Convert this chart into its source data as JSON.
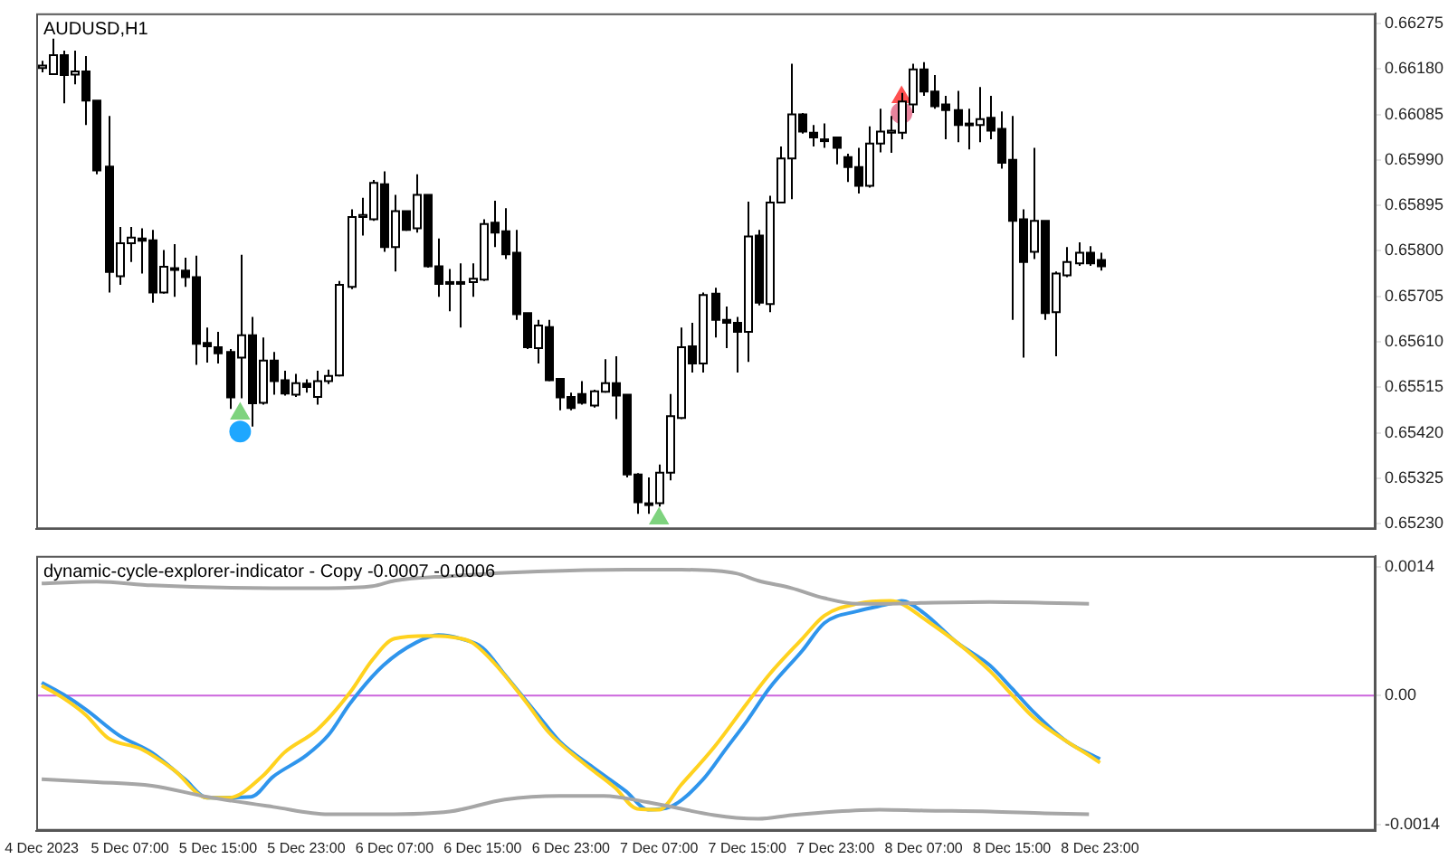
{
  "chart_data": [
    {
      "type": "candlestick",
      "title": "AUDUSD,H1",
      "tick_labels": "y",
      "xlim": [
        "2023-12-04T22:30",
        "2023-12-10T00:00"
      ],
      "ylim": [
        0.65219,
        0.66296
      ],
      "yticks": [
        0.66275,
        {
          "value": 0.6618,
          "label": "0.66180"
        },
        0.66085,
        {
          "value": 0.6599,
          "label": "0.65990"
        },
        0.65895,
        {
          "value": 0.658,
          "label": "0.65800"
        },
        0.65705,
        {
          "value": 0.6561,
          "label": "0.65610"
        },
        0.65515,
        {
          "value": 0.6542,
          "label": "0.65420"
        },
        0.65325,
        {
          "value": 0.6523,
          "label": "0.65230"
        }
      ],
      "x": [
        "2023-12-04T23:00",
        "2023-12-05T00:00",
        "2023-12-05T01:00",
        "2023-12-05T02:00",
        "2023-12-05T03:00",
        "2023-12-05T04:00",
        "2023-12-05T05:00",
        "2023-12-05T06:00",
        "2023-12-05T07:00",
        "2023-12-05T08:00",
        "2023-12-05T09:00",
        "2023-12-05T10:00",
        "2023-12-05T11:00",
        "2023-12-05T12:00",
        "2023-12-05T13:00",
        "2023-12-05T14:00",
        "2023-12-05T15:00",
        "2023-12-05T16:00",
        "2023-12-05T17:00",
        "2023-12-05T18:00",
        "2023-12-05T19:00",
        "2023-12-05T20:00",
        "2023-12-05T21:00",
        "2023-12-05T22:00",
        "2023-12-05T23:00",
        "2023-12-06T00:00",
        "2023-12-06T01:00",
        "2023-12-06T02:00",
        "2023-12-06T03:00",
        "2023-12-06T04:00",
        "2023-12-06T05:00",
        "2023-12-06T06:00",
        "2023-12-06T07:00",
        "2023-12-06T08:00",
        "2023-12-06T09:00",
        "2023-12-06T10:00",
        "2023-12-06T11:00",
        "2023-12-06T12:00",
        "2023-12-06T13:00",
        "2023-12-06T14:00",
        "2023-12-06T15:00",
        "2023-12-06T16:00",
        "2023-12-06T17:00",
        "2023-12-06T18:00",
        "2023-12-06T19:00",
        "2023-12-06T20:00",
        "2023-12-06T21:00",
        "2023-12-06T22:00",
        "2023-12-06T23:00",
        "2023-12-07T00:00",
        "2023-12-07T01:00",
        "2023-12-07T02:00",
        "2023-12-07T03:00",
        "2023-12-07T04:00",
        "2023-12-07T05:00",
        "2023-12-07T06:00",
        "2023-12-07T07:00",
        "2023-12-07T08:00",
        "2023-12-07T09:00",
        "2023-12-07T10:00",
        "2023-12-07T11:00",
        "2023-12-07T12:00",
        "2023-12-07T13:00",
        "2023-12-07T14:00",
        "2023-12-07T15:00",
        "2023-12-07T16:00",
        "2023-12-07T17:00",
        "2023-12-07T18:00",
        "2023-12-07T19:00",
        "2023-12-07T20:00",
        "2023-12-07T21:00",
        "2023-12-07T22:00",
        "2023-12-07T23:00",
        "2023-12-08T00:00",
        "2023-12-08T01:00",
        "2023-12-08T02:00",
        "2023-12-08T03:00",
        "2023-12-08T04:00",
        "2023-12-08T05:00",
        "2023-12-08T06:00",
        "2023-12-08T07:00",
        "2023-12-08T08:00",
        "2023-12-08T09:00",
        "2023-12-08T10:00",
        "2023-12-08T11:00",
        "2023-12-08T12:00",
        "2023-12-08T13:00",
        "2023-12-08T14:00",
        "2023-12-08T15:00",
        "2023-12-08T16:00",
        "2023-12-08T17:00",
        "2023-12-08T18:00",
        "2023-12-08T19:00",
        "2023-12-08T20:00",
        "2023-12-08T21:00",
        "2023-12-08T22:00",
        "2023-12-08T23:00"
      ],
      "ohlc": [
        [
          0.66182,
          0.66197,
          0.66173,
          0.66187
        ],
        [
          0.66169,
          0.66243,
          0.66167,
          0.66209
        ],
        [
          0.66209,
          0.66218,
          0.66108,
          0.66167
        ],
        [
          0.66168,
          0.66218,
          0.66148,
          0.66175
        ],
        [
          0.66175,
          0.66207,
          0.66063,
          0.66114
        ],
        [
          0.66114,
          0.66114,
          0.6596,
          0.65968
        ],
        [
          0.65976,
          0.66082,
          0.65713,
          0.65756
        ],
        [
          0.65747,
          0.6585,
          0.65729,
          0.65816
        ],
        [
          0.65816,
          0.6585,
          0.65777,
          0.65828
        ],
        [
          0.65826,
          0.65847,
          0.65753,
          0.65821
        ],
        [
          0.65822,
          0.65844,
          0.65692,
          0.65713
        ],
        [
          0.65713,
          0.65802,
          0.65711,
          0.65767
        ],
        [
          0.65764,
          0.65814,
          0.65704,
          0.65762
        ],
        [
          0.65759,
          0.65786,
          0.65725,
          0.65745
        ],
        [
          0.65745,
          0.6579,
          0.65562,
          0.65606
        ],
        [
          0.65608,
          0.6564,
          0.65567,
          0.65601
        ],
        [
          0.65599,
          0.65631,
          0.65565,
          0.65586
        ],
        [
          0.65589,
          0.65595,
          0.6547,
          0.65494
        ],
        [
          0.65577,
          0.65792,
          0.65492,
          0.65624
        ],
        [
          0.65624,
          0.65662,
          0.65433,
          0.65482
        ],
        [
          0.65483,
          0.65619,
          0.65479,
          0.65571
        ],
        [
          0.65571,
          0.65589,
          0.655,
          0.65528
        ],
        [
          0.6553,
          0.6555,
          0.65498,
          0.65502
        ],
        [
          0.655,
          0.65543,
          0.65495,
          0.65524
        ],
        [
          0.65523,
          0.65532,
          0.65504,
          0.65516
        ],
        [
          0.65495,
          0.6555,
          0.65479,
          0.65528
        ],
        [
          0.65528,
          0.65552,
          0.65522,
          0.65539
        ],
        [
          0.6554,
          0.65737,
          0.65538,
          0.65729
        ],
        [
          0.65725,
          0.65887,
          0.6572,
          0.65871
        ],
        [
          0.65871,
          0.65911,
          0.65832,
          0.65875
        ],
        [
          0.65866,
          0.65948,
          0.65863,
          0.65942
        ],
        [
          0.65939,
          0.65966,
          0.65798,
          0.65808
        ],
        [
          0.65808,
          0.65917,
          0.65757,
          0.65883
        ],
        [
          0.65883,
          0.65883,
          0.65842,
          0.65844
        ],
        [
          0.65847,
          0.6596,
          0.65838,
          0.65917
        ],
        [
          0.65917,
          0.65917,
          0.65765,
          0.65768
        ],
        [
          0.65768,
          0.65826,
          0.65704,
          0.65731
        ],
        [
          0.65735,
          0.65762,
          0.65674,
          0.65732
        ],
        [
          0.65732,
          0.65774,
          0.6564,
          0.65735
        ],
        [
          0.65735,
          0.65774,
          0.65704,
          0.65742
        ],
        [
          0.6574,
          0.65866,
          0.65737,
          0.65856
        ],
        [
          0.65859,
          0.65905,
          0.65808,
          0.65838
        ],
        [
          0.65841,
          0.65889,
          0.65783,
          0.65793
        ],
        [
          0.65796,
          0.65844,
          0.65656,
          0.65668
        ],
        [
          0.6567,
          0.6567,
          0.65595,
          0.65599
        ],
        [
          0.65597,
          0.65656,
          0.65565,
          0.65644
        ],
        [
          0.65641,
          0.65656,
          0.65528,
          0.6553
        ],
        [
          0.65533,
          0.65533,
          0.65467,
          0.65494
        ],
        [
          0.65495,
          0.65504,
          0.65467,
          0.65472
        ],
        [
          0.65501,
          0.65528,
          0.65479,
          0.65483
        ],
        [
          0.65477,
          0.6551,
          0.65473,
          0.65507
        ],
        [
          0.65506,
          0.65574,
          0.65504,
          0.65524
        ],
        [
          0.65524,
          0.6558,
          0.65449,
          0.65498
        ],
        [
          0.655,
          0.655,
          0.65327,
          0.65333
        ],
        [
          0.65333,
          0.65336,
          0.65251,
          0.65275
        ],
        [
          0.65273,
          0.65327,
          0.65251,
          0.6527
        ],
        [
          0.65273,
          0.65354,
          0.65266,
          0.65337
        ],
        [
          0.65337,
          0.65501,
          0.65321,
          0.65455
        ],
        [
          0.65451,
          0.6564,
          0.65449,
          0.65599
        ],
        [
          0.65601,
          0.6565,
          0.65546,
          0.65565
        ],
        [
          0.65565,
          0.65713,
          0.65546,
          0.65708
        ],
        [
          0.65711,
          0.65723,
          0.65619,
          0.65656
        ],
        [
          0.65656,
          0.65684,
          0.65597,
          0.6565
        ],
        [
          0.6565,
          0.65662,
          0.65546,
          0.65631
        ],
        [
          0.65631,
          0.65903,
          0.65568,
          0.6583
        ],
        [
          0.65832,
          0.65844,
          0.65686,
          0.65692
        ],
        [
          0.65689,
          0.65915,
          0.65672,
          0.65901
        ],
        [
          0.65901,
          0.66018,
          0.65899,
          0.65993
        ],
        [
          0.65993,
          0.66191,
          0.65908,
          0.66085
        ],
        [
          0.66085,
          0.66088,
          0.66045,
          0.66049
        ],
        [
          0.66047,
          0.66063,
          0.66018,
          0.66037
        ],
        [
          0.66033,
          0.66066,
          0.66015,
          0.6603
        ],
        [
          0.66037,
          0.66039,
          0.65981,
          0.66015
        ],
        [
          0.65996,
          0.66003,
          0.65944,
          0.65975
        ],
        [
          0.65975,
          0.66015,
          0.6592,
          0.65936
        ],
        [
          0.65936,
          0.6606,
          0.65932,
          0.66024
        ],
        [
          0.66024,
          0.66097,
          0.66006,
          0.66049
        ],
        [
          0.66047,
          0.66082,
          0.66005,
          0.66051
        ],
        [
          0.66047,
          0.6613,
          0.66033,
          0.66112
        ],
        [
          0.66106,
          0.66191,
          0.66088,
          0.66179
        ],
        [
          0.66179,
          0.66194,
          0.66124,
          0.66133
        ],
        [
          0.66133,
          0.66167,
          0.66097,
          0.66102
        ],
        [
          0.66106,
          0.66124,
          0.66033,
          0.66094
        ],
        [
          0.66094,
          0.66134,
          0.66027,
          0.66063
        ],
        [
          0.66063,
          0.66097,
          0.66012,
          0.66066
        ],
        [
          0.66063,
          0.66142,
          0.66027,
          0.66075
        ],
        [
          0.66078,
          0.66124,
          0.66033,
          0.66051
        ],
        [
          0.66055,
          0.66091,
          0.65972,
          0.65984
        ],
        [
          0.6599,
          0.66082,
          0.65656,
          0.65863
        ],
        [
          0.65866,
          0.65887,
          0.65577,
          0.65777
        ],
        [
          0.65798,
          0.66015,
          0.65783,
          0.65863
        ],
        [
          0.65863,
          0.65863,
          0.65656,
          0.6567
        ],
        [
          0.65672,
          0.65757,
          0.6558,
          0.65753
        ],
        [
          0.65749,
          0.65808,
          0.65745,
          0.65777
        ],
        [
          0.65774,
          0.65818,
          0.65769,
          0.65796
        ],
        [
          0.65796,
          0.6581,
          0.65769,
          0.65774
        ],
        [
          0.65781,
          0.65796,
          0.65759,
          0.65768
        ]
      ],
      "series": [
        {
          "type": "scatter",
          "marker": "circle",
          "color": "#1ea7ff",
          "x": [
            "2023-12-05T17:00"
          ],
          "values": [
            0.65423
          ]
        },
        {
          "type": "scatter",
          "marker": "circle",
          "color": "#e8839c",
          "x": [
            "2023-12-08T05:00"
          ],
          "values": [
            0.66088
          ]
        },
        {
          "type": "scatter",
          "marker": "triangle",
          "color": "#7ed37e",
          "x": [
            "2023-12-05T17:00",
            "2023-12-07T07:00"
          ],
          "values": [
            0.6546,
            0.65241
          ]
        },
        {
          "type": "scatter",
          "marker": "triangle",
          "color": "#ff5050",
          "x": [
            "2023-12-08T05:00"
          ],
          "values": [
            0.66121
          ]
        }
      ]
    },
    {
      "type": "line",
      "title": "dynamic-cycle-explorer-indicator - Copy -0.0007 -0.0006",
      "xlim": [
        "2023-12-04T22:30",
        "2023-12-10T00:00"
      ],
      "xticks": [
        {
          "value": "2023-12-04T23:00",
          "label": "4 Dec 2023"
        },
        {
          "value": "2023-12-05T07:00",
          "label": "5 Dec 07:00"
        },
        {
          "value": "2023-12-05T15:00",
          "label": "5 Dec 15:00"
        },
        {
          "value": "2023-12-05T23:00",
          "label": "5 Dec 23:00"
        },
        {
          "value": "2023-12-06T07:00",
          "label": "6 Dec 07:00"
        },
        {
          "value": "2023-12-06T15:00",
          "label": "6 Dec 15:00"
        },
        {
          "value": "2023-12-06T23:00",
          "label": "6 Dec 23:00"
        },
        {
          "value": "2023-12-07T07:00",
          "label": "7 Dec 07:00"
        },
        {
          "value": "2023-12-07T15:00",
          "label": "7 Dec 15:00"
        },
        {
          "value": "2023-12-07T23:00",
          "label": "7 Dec 23:00"
        },
        {
          "value": "2023-12-08T07:00",
          "label": "8 Dec 07:00"
        },
        {
          "value": "2023-12-08T15:00",
          "label": "8 Dec 15:00"
        },
        {
          "value": "2023-12-08T23:00",
          "label": "8 Dec 23:00"
        }
      ],
      "ylim": [
        -0.00147,
        0.00152
      ],
      "yticks": [
        0.0014,
        {
          "value": 0,
          "label": "0.00"
        },
        -0.0014
      ],
      "ref_lines": [
        {
          "axis": "y",
          "value": 0,
          "color": "#cc66dd"
        }
      ],
      "series": [
        {
          "color": "#a6a6a6",
          "x": [
            "2023-12-04T23:00",
            "2023-12-05T04:00",
            "2023-12-05T09:00",
            "2023-12-05T20:00",
            "2023-12-06T01:00",
            "2023-12-06T05:00",
            "2023-12-06T07:00",
            "2023-12-06T12:00",
            "2023-12-06T20:00",
            "2023-12-07T04:00",
            "2023-12-07T09:00",
            "2023-12-07T14:00",
            "2023-12-07T16:00",
            "2023-12-07T19:00",
            "2023-12-07T22:00",
            "2023-12-08T01:00",
            "2023-12-08T04:00",
            "2023-12-08T07:00",
            "2023-12-08T13:00",
            "2023-12-08T18:00",
            "2023-12-08T22:00"
          ],
          "values": [
            0.00122,
            0.00124,
            0.0012,
            0.00117,
            0.00117,
            0.00119,
            0.00125,
            0.0013,
            0.00135,
            0.00137,
            0.00137,
            0.00133,
            0.00125,
            0.00117,
            0.00106,
            0.001,
            0.001,
            0.00101,
            0.00102,
            0.00101,
            0.001
          ]
        },
        {
          "color": "#a6a6a6",
          "x": [
            "2023-12-04T23:00",
            "2023-12-05T04:00",
            "2023-12-05T09:00",
            "2023-12-05T14:00",
            "2023-12-05T20:00",
            "2023-12-06T01:00",
            "2023-12-06T06:00",
            "2023-12-06T12:00",
            "2023-12-06T17:00",
            "2023-12-06T22:00",
            "2023-12-07T02:00",
            "2023-12-07T06:00",
            "2023-12-07T12:00",
            "2023-12-07T14:00",
            "2023-12-07T16:00",
            "2023-12-07T19:00",
            "2023-12-07T23:00",
            "2023-12-08T03:00",
            "2023-12-08T07:00",
            "2023-12-08T13:00",
            "2023-12-08T18:00",
            "2023-12-08T22:00"
          ],
          "values": [
            -0.00091,
            -0.00094,
            -0.00098,
            -0.0011,
            -0.00121,
            -0.00129,
            -0.00129,
            -0.00126,
            -0.00113,
            -0.00109,
            -0.00109,
            -0.00116,
            -0.0013,
            -0.00133,
            -0.00134,
            -0.0013,
            -0.00126,
            -0.00124,
            -0.00125,
            -0.00126,
            -0.00128,
            -0.00129
          ]
        },
        {
          "color": "#ffd21f",
          "x": [
            "2023-12-04T23:00",
            "2023-12-05T01:00",
            "2023-12-05T03:00",
            "2023-12-05T05:00",
            "2023-12-05T08:00",
            "2023-12-05T11:00",
            "2023-12-05T14:00",
            "2023-12-05T16:00",
            "2023-12-05T19:00",
            "2023-12-05T21:00",
            "2023-12-06T00:00",
            "2023-12-06T03:00",
            "2023-12-06T05:00",
            "2023-12-06T07:00",
            "2023-12-06T10:00",
            "2023-12-06T12:00",
            "2023-12-06T14:00",
            "2023-12-06T16:00",
            "2023-12-06T19:00",
            "2023-12-06T21:00",
            "2023-12-07T00:00",
            "2023-12-07T03:00",
            "2023-12-07T05:00",
            "2023-12-07T07:00",
            "2023-12-07T09:00",
            "2023-12-07T12:00",
            "2023-12-07T15:00",
            "2023-12-07T17:00",
            "2023-12-07T20:00",
            "2023-12-07T22:00",
            "2023-12-08T01:00",
            "2023-12-08T04:00",
            "2023-12-08T05:00",
            "2023-12-08T07:00",
            "2023-12-08T10:00",
            "2023-12-08T13:00",
            "2023-12-08T15:00",
            "2023-12-08T17:00",
            "2023-12-08T20:00",
            "2023-12-08T22:00",
            "2023-12-08T23:00"
          ],
          "values": [
            0.00011,
            -3e-05,
            -0.00021,
            -0.00046,
            -0.00058,
            -0.00081,
            -0.00111,
            -0.00111,
            -0.00088,
            -0.00062,
            -0.00037,
            4e-05,
            0.00039,
            0.00062,
            0.00065,
            0.00064,
            0.00058,
            0.00036,
            -8e-05,
            -0.0004,
            -0.00072,
            -0.001,
            -0.00123,
            -0.00124,
            -0.00097,
            -0.00056,
            -8e-05,
            0.00023,
            0.00062,
            0.00087,
            0.001,
            0.00103,
            0.001,
            0.00084,
            0.00058,
            0.00027,
            1e-05,
            -0.00024,
            -0.0005,
            -0.00065,
            -0.00073
          ]
        },
        {
          "color": "#2f95ec",
          "x": [
            "2023-12-04T23:00",
            "2023-12-05T01:00",
            "2023-12-05T03:00",
            "2023-12-05T06:00",
            "2023-12-05T09:00",
            "2023-12-05T12:00",
            "2023-12-05T14:00",
            "2023-12-05T18:00",
            "2023-12-05T20:00",
            "2023-12-05T23:00",
            "2023-12-06T01:00",
            "2023-12-06T03:00",
            "2023-12-06T06:00",
            "2023-12-06T09:00",
            "2023-12-06T11:00",
            "2023-12-06T13:00",
            "2023-12-06T15:00",
            "2023-12-06T17:00",
            "2023-12-06T20:00",
            "2023-12-06T22:00",
            "2023-12-07T01:00",
            "2023-12-07T04:00",
            "2023-12-07T06:00",
            "2023-12-07T08:00",
            "2023-12-07T11:00",
            "2023-12-07T13:00",
            "2023-12-07T15:00",
            "2023-12-07T17:00",
            "2023-12-07T20:00",
            "2023-12-07T22:00",
            "2023-12-08T01:00",
            "2023-12-08T04:00",
            "2023-12-08T05:00",
            "2023-12-08T07:00",
            "2023-12-08T10:00",
            "2023-12-08T13:00",
            "2023-12-08T15:00",
            "2023-12-08T17:00",
            "2023-12-08T20:00",
            "2023-12-08T23:00"
          ],
          "values": [
            0.00014,
            1e-05,
            -0.00015,
            -0.00043,
            -0.00062,
            -0.00091,
            -0.00111,
            -0.0011,
            -0.00088,
            -0.00065,
            -0.00043,
            -8e-05,
            0.00033,
            0.00058,
            0.00066,
            0.00062,
            0.00052,
            0.00023,
            -0.00021,
            -0.0005,
            -0.00078,
            -0.00104,
            -0.00124,
            -0.00121,
            -0.00091,
            -0.00059,
            -0.00027,
            8e-05,
            0.00049,
            0.00079,
            0.00092,
            0.001,
            0.00103,
            0.0009,
            0.00058,
            0.00033,
            8e-05,
            -0.00018,
            -0.0005,
            -0.00069
          ]
        }
      ]
    }
  ]
}
